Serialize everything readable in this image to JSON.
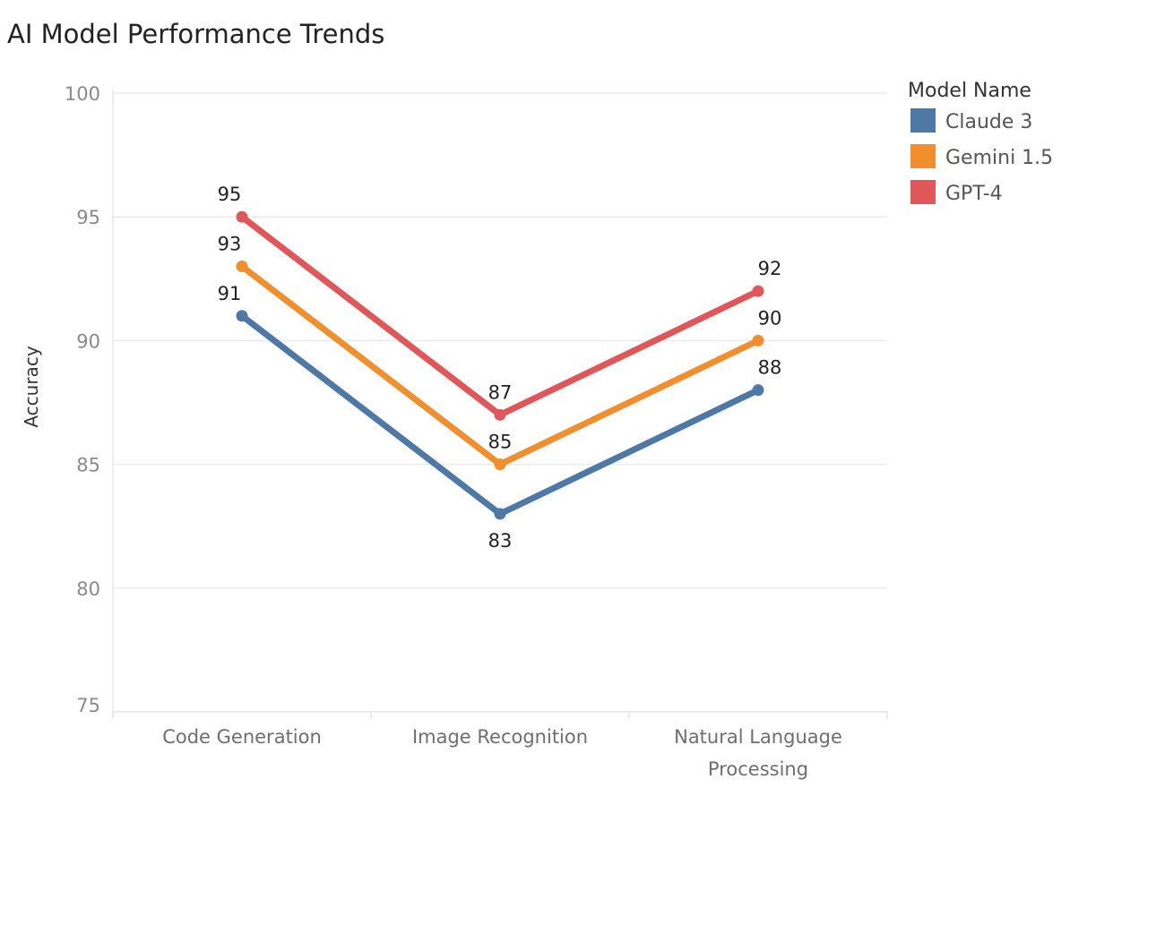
{
  "chart_data": {
    "type": "line",
    "title": "AI Model Performance Trends",
    "xlabel": "",
    "ylabel": "Accuracy",
    "categories": [
      "Code Generation",
      "Image Recognition",
      "Natural Language Processing"
    ],
    "category_lines": [
      [
        "Code Generation"
      ],
      [
        "Image Recognition"
      ],
      [
        "Natural Language",
        "Processing"
      ]
    ],
    "ylim": [
      75,
      100
    ],
    "yticks": [
      75,
      80,
      85,
      90,
      95,
      100
    ],
    "grid": true,
    "data_labels": true,
    "legend": {
      "title": "Model Name",
      "placement": "top-right"
    },
    "series": [
      {
        "name": "Claude 3",
        "color": "#4e79a7",
        "values": [
          91,
          83,
          88
        ]
      },
      {
        "name": "Gemini 1.5",
        "color": "#f28e2b",
        "values": [
          93,
          85,
          90
        ]
      },
      {
        "name": "GPT-4",
        "color": "#e15759",
        "values": [
          95,
          87,
          92
        ]
      }
    ]
  }
}
